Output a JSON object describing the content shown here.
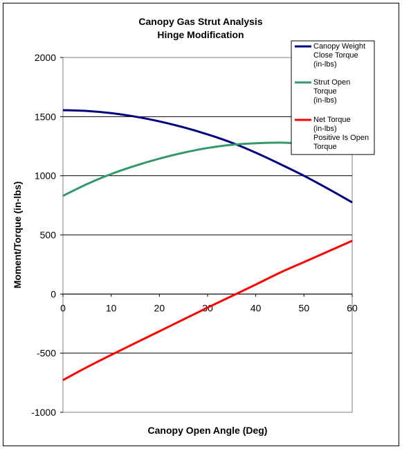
{
  "chart_data": {
    "type": "line",
    "title": [
      "Canopy Gas Strut Analysis",
      "Hinge Modification"
    ],
    "xlabel": "Canopy Open Angle (Deg)",
    "ylabel": "Moment/Torque (in-lbs)",
    "xlim": [
      0,
      60
    ],
    "ylim": [
      -1000,
      2000
    ],
    "x_ticks": [
      "0",
      "10",
      "20",
      "30",
      "40",
      "50",
      "60"
    ],
    "y_ticks": [
      "-1000",
      "-500",
      "0",
      "500",
      "1000",
      "1500",
      "2000"
    ],
    "grid": "horizontal major gridlines",
    "legend_position": "top-right",
    "x": [
      0,
      5,
      10,
      15,
      20,
      25,
      30,
      35,
      40,
      45,
      50,
      55,
      60
    ],
    "series": [
      {
        "name_lines": [
          "Canopy Weight",
          "Close Torque",
          "(in-lbs)"
        ],
        "color": "#000080",
        "values": [
          1555,
          1548,
          1530,
          1500,
          1460,
          1410,
          1350,
          1280,
          1195,
          1100,
          1000,
          890,
          775
        ]
      },
      {
        "name_lines": [
          "Strut Open",
          "Torque",
          "(in-lbs)"
        ],
        "color": "#339966",
        "values": [
          830,
          930,
          1015,
          1085,
          1145,
          1195,
          1235,
          1262,
          1275,
          1280,
          1270,
          1250,
          1225
        ]
      },
      {
        "name_lines": [
          "Net Torque",
          "(in-lbs)",
          "Positive Is Open",
          "Torque"
        ],
        "color": "#ff0000",
        "values": [
          -728,
          -618,
          -515,
          -415,
          -315,
          -215,
          -115,
          -18,
          80,
          180,
          270,
          360,
          450
        ]
      }
    ]
  }
}
